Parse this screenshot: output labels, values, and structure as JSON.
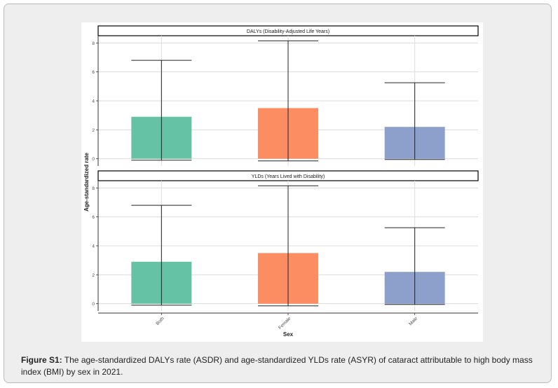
{
  "colors": {
    "Both": "#66c2a5",
    "Female": "#fc8d62",
    "Male": "#8da0cb"
  },
  "chart_data": {
    "type": "bar",
    "ylabel": "Age-standardized rate",
    "xlabel": "Sex",
    "categories": [
      "Both",
      "Female",
      "Male"
    ],
    "ylim": [
      -0.5,
      8.5
    ],
    "yticks": [
      "0",
      "2",
      "4",
      "6",
      "8"
    ],
    "panels": [
      {
        "title": "DALYs (Disability-Adjusted Life Years)",
        "values": [
          2.9,
          3.5,
          2.2
        ],
        "lower": [
          -0.1,
          -0.15,
          -0.05
        ],
        "upper": [
          6.8,
          8.15,
          5.25
        ]
      },
      {
        "title": "YLDs (Years Lived with Disability)",
        "values": [
          2.9,
          3.5,
          2.2
        ],
        "lower": [
          -0.1,
          -0.15,
          -0.05
        ],
        "upper": [
          6.8,
          8.15,
          5.25
        ]
      }
    ]
  },
  "caption": {
    "label": "Figure S1:",
    "text": " The age-standardized DALYs rate (ASDR) and age-standardized YLDs rate (ASYR) of cataract attributable to high body mass index (BMI) by sex in 2021."
  }
}
